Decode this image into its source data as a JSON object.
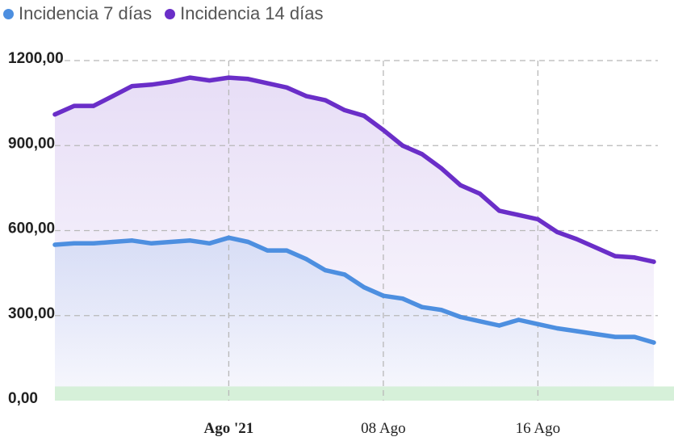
{
  "legend": [
    {
      "label": "Incidencia 7 días",
      "color": "#4d8fe0"
    },
    {
      "label": "Incidencia 14 días",
      "color": "#6a2ec8"
    }
  ],
  "chart_data": {
    "type": "line",
    "x_start_date": "2021-07-22",
    "ylim": [
      0,
      1200
    ],
    "yticks": [
      {
        "value": 0,
        "label": "0,00"
      },
      {
        "value": 300,
        "label": "300,00"
      },
      {
        "value": 600,
        "label": "600,00"
      },
      {
        "value": 900,
        "label": "900,00"
      },
      {
        "value": 1200,
        "label": "1200,00"
      }
    ],
    "xticks": [
      {
        "date": "2021-07-31",
        "label": "Ago '21",
        "bold": true
      },
      {
        "date": "2021-08-08",
        "label": "08 Ago",
        "bold": false
      },
      {
        "date": "2021-08-16",
        "label": "16 Ago",
        "bold": false
      }
    ],
    "threshold_band": {
      "from": 0,
      "to": 50,
      "color": "#d6f0d9"
    },
    "series": [
      {
        "name": "Incidencia 14 días",
        "color": "#6a2ec8",
        "values": [
          1010,
          1040,
          1040,
          1075,
          1110,
          1115,
          1125,
          1140,
          1130,
          1140,
          1135,
          1120,
          1105,
          1075,
          1060,
          1025,
          1005,
          955,
          900,
          870,
          820,
          760,
          730,
          670,
          655,
          640,
          595,
          570,
          540,
          510,
          505,
          490
        ]
      },
      {
        "name": "Incidencia 7 días",
        "color": "#4d8fe0",
        "values": [
          550,
          555,
          555,
          560,
          565,
          555,
          560,
          565,
          555,
          575,
          560,
          530,
          530,
          500,
          460,
          445,
          400,
          370,
          360,
          330,
          320,
          295,
          280,
          265,
          285,
          270,
          255,
          245,
          235,
          225,
          225,
          205
        ]
      }
    ]
  }
}
